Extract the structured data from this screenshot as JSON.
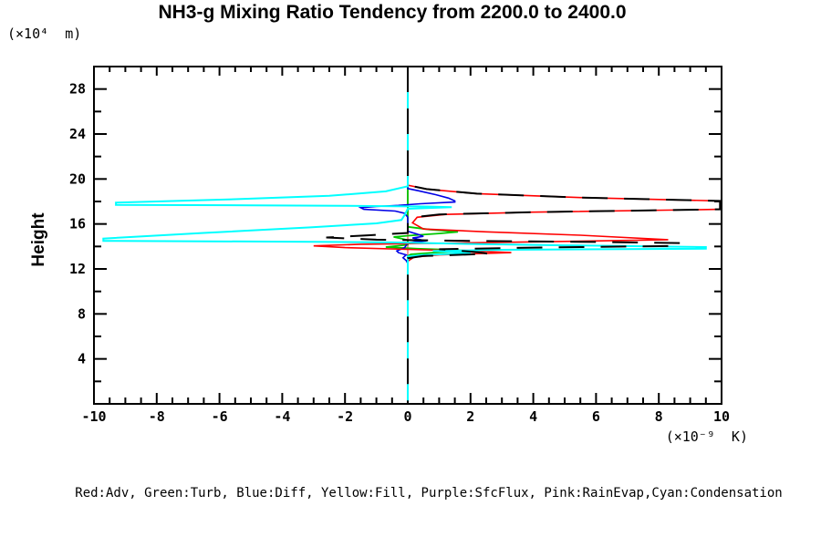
{
  "title": "NH3-g Mixing Ratio Tendency from 2200.0 to 2400.0",
  "axes": {
    "y_unit": "(×10⁴  m)",
    "y_title": "Height",
    "x_unit": "(×10⁻⁹  K)"
  },
  "legend_caption": "Red:Adv, Green:Turb, Blue:Diff, Yellow:Fill, Purple:SfcFlux, Pink:RainEvap,Cyan:Condensation",
  "colors": {
    "red": "#ff0000",
    "green": "#00c800",
    "blue": "#0000e6",
    "yellow": "#ffff00",
    "purple": "#a020f0",
    "pink": "#ff9696",
    "cyan": "#00ffff",
    "black": "#000000"
  },
  "chart_data": {
    "type": "line",
    "title": "NH3-g Mixing Ratio Tendency from 2200.0 to 2400.0",
    "xlabel": "(×10⁻⁹ K)",
    "ylabel": "Height (×10⁴ m)",
    "xlim": [
      -10,
      10
    ],
    "ylim": [
      0,
      30
    ],
    "grid": false,
    "x_axis": {
      "major_tick_step": 2,
      "minor_tick_step": 0.5,
      "tick_labels": [
        -10,
        -8,
        -6,
        -4,
        -2,
        0,
        2,
        4,
        6,
        8,
        10
      ]
    },
    "y_axis": {
      "major_tick_step": 4,
      "minor_tick_step": 2,
      "tick_labels": [
        4,
        8,
        12,
        16,
        20,
        24,
        28
      ]
    },
    "series": [
      {
        "name": "Fill",
        "color_key": "yellow",
        "dash": "",
        "width": 1.6,
        "points": [
          [
            0,
            30
          ],
          [
            0,
            0
          ]
        ]
      },
      {
        "name": "SfcFlux",
        "color_key": "purple",
        "dash": "",
        "width": 1.6,
        "points": [
          [
            0,
            30
          ],
          [
            0,
            0
          ]
        ]
      },
      {
        "name": "RainEvap",
        "color_key": "pink",
        "dash": "",
        "width": 1.8,
        "points": [
          [
            0,
            30
          ],
          [
            0,
            0
          ]
        ]
      },
      {
        "name": "Turb",
        "color_key": "green",
        "dash": "",
        "width": 1.8,
        "points": [
          [
            0,
            30
          ],
          [
            0,
            15.75
          ],
          [
            0.7,
            15.5
          ],
          [
            1.6,
            15.3
          ],
          [
            1.0,
            15.15
          ],
          [
            0.2,
            15.0
          ],
          [
            -0.45,
            14.85
          ],
          [
            -0.2,
            14.7
          ],
          [
            0,
            14.55
          ],
          [
            0,
            14.15
          ],
          [
            -0.7,
            13.95
          ],
          [
            0.3,
            13.8
          ],
          [
            1.4,
            13.7
          ],
          [
            2.0,
            13.6
          ],
          [
            0.8,
            13.45
          ],
          [
            0.1,
            13.3
          ],
          [
            0,
            13.15
          ],
          [
            0,
            0
          ]
        ]
      },
      {
        "name": "Diff",
        "color_key": "blue",
        "dash": "",
        "width": 1.6,
        "points": [
          [
            0,
            30
          ],
          [
            0,
            19.15
          ],
          [
            0.35,
            18.95
          ],
          [
            0.9,
            18.6
          ],
          [
            1.3,
            18.3
          ],
          [
            1.5,
            18.05
          ],
          [
            1.5,
            17.95
          ],
          [
            0.4,
            17.8
          ],
          [
            -0.3,
            17.65
          ],
          [
            -1.0,
            17.55
          ],
          [
            -1.5,
            17.45
          ],
          [
            -1.4,
            17.3
          ],
          [
            -0.4,
            17.15
          ],
          [
            -0.1,
            16.95
          ],
          [
            0,
            16.6
          ],
          [
            0,
            15.35
          ],
          [
            0.3,
            15.1
          ],
          [
            0.5,
            14.9
          ],
          [
            0.15,
            14.75
          ],
          [
            0.4,
            14.6
          ],
          [
            0.6,
            14.5
          ],
          [
            0.2,
            14.4
          ],
          [
            0,
            14.3
          ],
          [
            -0.1,
            13.9
          ],
          [
            -0.35,
            13.6
          ],
          [
            -0.3,
            13.45
          ],
          [
            -0.05,
            13.25
          ],
          [
            -0.15,
            13.0
          ],
          [
            -0.05,
            12.75
          ],
          [
            0,
            12.5
          ],
          [
            0,
            0
          ]
        ]
      },
      {
        "name": "Adv",
        "color_key": "red",
        "dash": "",
        "width": 1.6,
        "points": [
          [
            0,
            30
          ],
          [
            0,
            19.45
          ],
          [
            0.6,
            19.1
          ],
          [
            2.2,
            18.7
          ],
          [
            5.5,
            18.35
          ],
          [
            9.95,
            18.05
          ],
          [
            9.95,
            17.3
          ],
          [
            4,
            17.05
          ],
          [
            1.2,
            16.85
          ],
          [
            0.3,
            16.6
          ],
          [
            0.15,
            16.1
          ],
          [
            0.5,
            15.55
          ],
          [
            2.5,
            15.3
          ],
          [
            5.5,
            15.0
          ],
          [
            8.3,
            14.6
          ],
          [
            5,
            14.45
          ],
          [
            1.5,
            14.3
          ],
          [
            -1.5,
            14.2
          ],
          [
            -3.0,
            14.05
          ],
          [
            -2.0,
            13.9
          ],
          [
            0.5,
            13.7
          ],
          [
            2.5,
            13.55
          ],
          [
            3.3,
            13.45
          ],
          [
            1.0,
            13.25
          ],
          [
            0.2,
            13.05
          ],
          [
            0,
            12.7
          ],
          [
            0,
            0
          ]
        ]
      },
      {
        "name": "Condensation",
        "color_key": "cyan",
        "dash": "",
        "width": 2,
        "points": [
          [
            0,
            30
          ],
          [
            0,
            19.35
          ],
          [
            -0.7,
            18.9
          ],
          [
            -2.5,
            18.5
          ],
          [
            -5.5,
            18.2
          ],
          [
            -9.3,
            17.9
          ],
          [
            -9.3,
            17.7
          ],
          [
            -5,
            17.66
          ],
          [
            -2,
            17.62
          ],
          [
            -0.4,
            17.58
          ],
          [
            0.6,
            17.55
          ],
          [
            1.4,
            17.5
          ],
          [
            0.6,
            17.42
          ],
          [
            0,
            17.35
          ],
          [
            -0.1,
            16.8
          ],
          [
            -0.2,
            16.35
          ],
          [
            -1.0,
            16.05
          ],
          [
            -3.1,
            15.7
          ],
          [
            -6.5,
            15.2
          ],
          [
            -9.7,
            14.7
          ],
          [
            -9.7,
            14.5
          ],
          [
            -3,
            14.42
          ],
          [
            -0.5,
            14.36
          ],
          [
            1.5,
            14.25
          ],
          [
            5,
            14.1
          ],
          [
            9.5,
            13.95
          ],
          [
            9.5,
            13.8
          ],
          [
            3,
            13.7
          ],
          [
            0.8,
            13.6
          ],
          [
            1.6,
            13.5
          ],
          [
            2.0,
            13.4
          ],
          [
            0.5,
            13.25
          ],
          [
            0,
            13.1
          ],
          [
            0,
            0
          ]
        ]
      },
      {
        "name": "Unlabeled-Black",
        "color_key": "black",
        "dash": "28 18",
        "width": 2,
        "points": [
          [
            0,
            30
          ],
          [
            0,
            19.45
          ],
          [
            0.6,
            19.1
          ],
          [
            2.2,
            18.7
          ],
          [
            5.5,
            18.35
          ],
          [
            9.95,
            18.05
          ],
          [
            9.95,
            17.3
          ],
          [
            4,
            17.05
          ],
          [
            1.0,
            16.85
          ],
          [
            0.2,
            16.6
          ],
          [
            0,
            16.2
          ],
          [
            0,
            15.2
          ],
          [
            -1.2,
            15.0
          ],
          [
            -2.6,
            14.8
          ],
          [
            -1.0,
            14.6
          ],
          [
            2.0,
            14.5
          ],
          [
            6.0,
            14.4
          ],
          [
            8.7,
            14.3
          ],
          [
            8.7,
            14.05
          ],
          [
            4.0,
            13.9
          ],
          [
            1.0,
            13.75
          ],
          [
            2.2,
            13.5
          ],
          [
            2.6,
            13.35
          ],
          [
            0.5,
            13.15
          ],
          [
            0,
            12.95
          ],
          [
            0,
            0
          ]
        ]
      }
    ]
  }
}
